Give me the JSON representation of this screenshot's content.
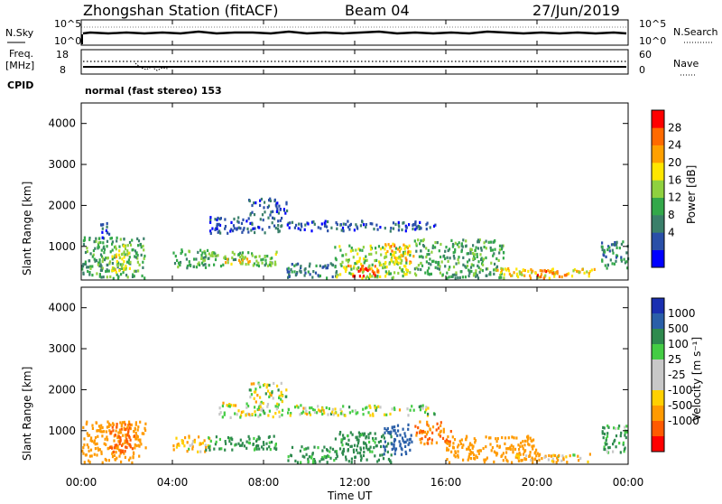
{
  "header": {
    "station": "Zhongshan Station (fitACF)",
    "beam": "Beam 04",
    "date": "27/Jun/2019"
  },
  "panels": {
    "nsky": {
      "left_label": "N.Sky",
      "left_ticks": [
        "10^5",
        "10^0"
      ],
      "right_ticks": [
        "10^5",
        "10^0"
      ],
      "right_label": "N.Search"
    },
    "freq": {
      "left_label_top": "Freq.",
      "left_label_unit": "[MHz]",
      "left_ticks": [
        "18",
        "8"
      ],
      "right_ticks": [
        "60",
        "0"
      ],
      "right_label": "Nave"
    },
    "cpid": {
      "label": "CPID",
      "text": "normal (fast stereo) 153"
    }
  },
  "colors": {
    "power_scale": [
      "#0000ff",
      "#2a4fa8",
      "#3a7f6a",
      "#33a84a",
      "#8fd13f",
      "#ffe600",
      "#ffa000",
      "#ff6a00",
      "#ff0000"
    ],
    "velocity_scale": [
      "#ff0000",
      "#ff5a00",
      "#ff9a00",
      "#ffd000",
      "#c8c8c8",
      "#c8c8c8",
      "#44cc44",
      "#2e8a4e",
      "#2a5fa8",
      "#1a2fb0"
    ]
  },
  "chart_data": [
    {
      "type": "heatmap",
      "name_panel": "power",
      "ylabel": "Slant Range [km]",
      "yticks": [
        1000,
        2000,
        3000,
        4000
      ],
      "ylim": [
        180,
        4500
      ],
      "xlim_hours": [
        0,
        24
      ],
      "colorbar_label": "Power [dB]",
      "colorbar_ticks": [
        "28",
        "24",
        "20",
        "16",
        "12",
        "8",
        "4"
      ],
      "value_range": [
        0,
        32
      ],
      "regions": [
        {
          "t0": 0.0,
          "t1": 2.8,
          "r0": 250,
          "r1": 1250,
          "v": 12
        },
        {
          "t0": 1.3,
          "t1": 2.2,
          "r0": 400,
          "r1": 1100,
          "v": 18
        },
        {
          "t0": 0.8,
          "t1": 1.2,
          "r0": 1200,
          "r1": 1650,
          "v": 6
        },
        {
          "t0": 4.0,
          "t1": 5.6,
          "r0": 500,
          "r1": 950,
          "v": 12
        },
        {
          "t0": 5.2,
          "t1": 8.6,
          "r0": 550,
          "r1": 900,
          "v": 14
        },
        {
          "t0": 6.2,
          "t1": 7.6,
          "r0": 600,
          "r1": 780,
          "v": 20
        },
        {
          "t0": 5.6,
          "t1": 8.8,
          "r0": 1350,
          "r1": 1750,
          "v": 6
        },
        {
          "t0": 7.3,
          "t1": 9.0,
          "r0": 1800,
          "r1": 2200,
          "v": 6
        },
        {
          "t0": 9.0,
          "t1": 11.0,
          "r0": 1400,
          "r1": 1650,
          "v": 5
        },
        {
          "t0": 9.0,
          "t1": 11.2,
          "r0": 250,
          "r1": 650,
          "v": 8
        },
        {
          "t0": 11.1,
          "t1": 14.4,
          "r0": 250,
          "r1": 1050,
          "v": 16
        },
        {
          "t0": 11.6,
          "t1": 13.0,
          "r0": 300,
          "r1": 600,
          "v": 28
        },
        {
          "t0": 13.3,
          "t1": 14.6,
          "r0": 600,
          "r1": 1100,
          "v": 22
        },
        {
          "t0": 11.0,
          "t1": 15.5,
          "r0": 1400,
          "r1": 1650,
          "v": 6
        },
        {
          "t0": 14.6,
          "t1": 18.5,
          "r0": 250,
          "r1": 1200,
          "v": 12
        },
        {
          "t0": 18.0,
          "t1": 22.5,
          "r0": 250,
          "r1": 500,
          "v": 20
        },
        {
          "t0": 19.8,
          "t1": 21.3,
          "r0": 250,
          "r1": 450,
          "v": 26
        },
        {
          "t0": 22.8,
          "t1": 24.0,
          "r0": 500,
          "r1": 1150,
          "v": 10
        }
      ]
    },
    {
      "type": "heatmap",
      "name_panel": "velocity",
      "ylabel": "Slant Range [km]",
      "yticks": [
        1000,
        2000,
        3000,
        4000
      ],
      "ylim": [
        180,
        4500
      ],
      "xlim_hours": [
        0,
        24
      ],
      "xticks": [
        "00:00",
        "04:00",
        "08:00",
        "12:00",
        "16:00",
        "20:00",
        "00:00"
      ],
      "xlabel": "Time UT",
      "colorbar_label": "Velocity [m s⁻¹]",
      "colorbar_ticks": [
        "1000",
        "500",
        "100",
        "25",
        "-25",
        "-100",
        "-500",
        "-1000"
      ],
      "value_range": [
        -1200,
        1200
      ],
      "regions": [
        {
          "t0": 0.0,
          "t1": 2.8,
          "r0": 250,
          "r1": 1250,
          "v": -300
        },
        {
          "t0": 1.2,
          "t1": 2.3,
          "r0": 500,
          "r1": 1200,
          "v": -700
        },
        {
          "t0": 4.0,
          "t1": 5.6,
          "r0": 500,
          "r1": 900,
          "v": -100
        },
        {
          "t0": 5.4,
          "t1": 8.6,
          "r0": 550,
          "r1": 900,
          "v": 150
        },
        {
          "t0": 6.0,
          "t1": 8.8,
          "r0": 1350,
          "r1": 1750,
          "v": 0
        },
        {
          "t0": 7.3,
          "t1": 9.0,
          "r0": 1800,
          "r1": 2200,
          "v": 0
        },
        {
          "t0": 9.0,
          "t1": 15.5,
          "r0": 1400,
          "r1": 1650,
          "v": 0
        },
        {
          "t0": 9.0,
          "t1": 11.2,
          "r0": 250,
          "r1": 650,
          "v": 150
        },
        {
          "t0": 11.1,
          "t1": 13.6,
          "r0": 250,
          "r1": 1000,
          "v": 200
        },
        {
          "t0": 13.2,
          "t1": 14.5,
          "r0": 450,
          "r1": 1200,
          "v": 800
        },
        {
          "t0": 14.6,
          "t1": 16.2,
          "r0": 700,
          "r1": 1250,
          "v": -500
        },
        {
          "t0": 16.0,
          "t1": 20.0,
          "r0": 250,
          "r1": 900,
          "v": -300
        },
        {
          "t0": 19.0,
          "t1": 22.3,
          "r0": 250,
          "r1": 480,
          "v": -80
        },
        {
          "t0": 22.8,
          "t1": 24.0,
          "r0": 500,
          "r1": 1150,
          "v": 120
        }
      ]
    }
  ]
}
